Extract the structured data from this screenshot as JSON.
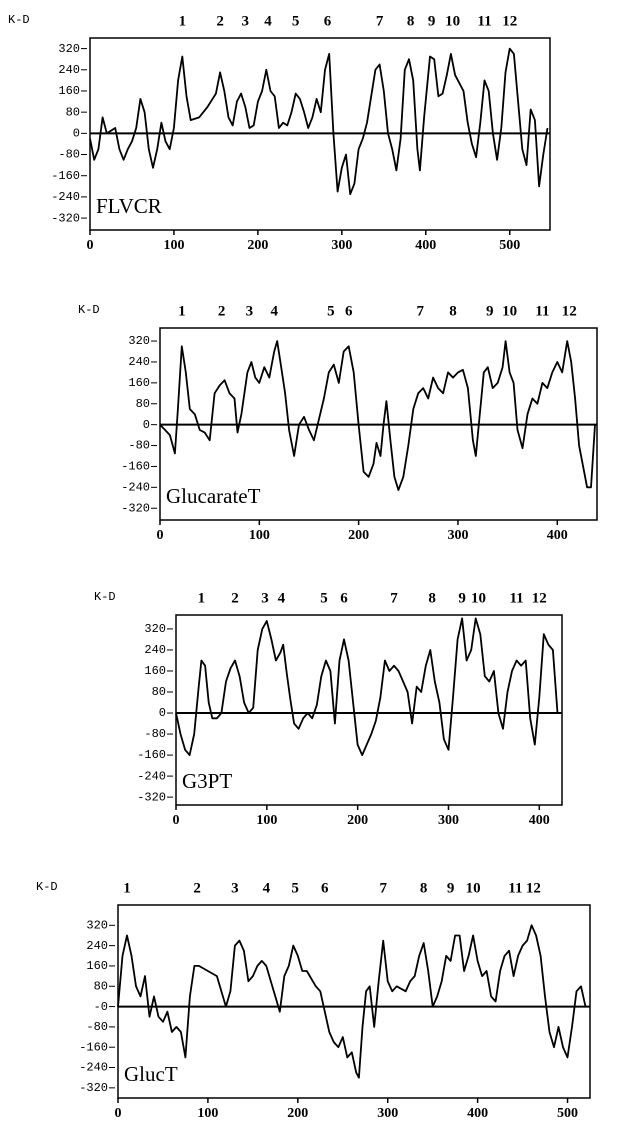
{
  "chart_data": [
    {
      "type": "line",
      "y_label": "K-D",
      "label": "FLVCR",
      "xlim": [
        0,
        548
      ],
      "xticks": [
        0,
        100,
        200,
        300,
        400,
        500
      ],
      "ylim": [
        -365,
        360
      ],
      "yticks": [
        320,
        240,
        160,
        80,
        0,
        -80,
        -160,
        -240,
        -320
      ],
      "annotations": [
        {
          "text": "1",
          "x": 110
        },
        {
          "text": "2",
          "x": 155
        },
        {
          "text": "3",
          "x": 185
        },
        {
          "text": "4",
          "x": 212
        },
        {
          "text": "5",
          "x": 245
        },
        {
          "text": "6",
          "x": 283
        },
        {
          "text": "7",
          "x": 345
        },
        {
          "text": "8",
          "x": 382
        },
        {
          "text": "9",
          "x": 407
        },
        {
          "text": "10",
          "x": 432
        },
        {
          "text": "11",
          "x": 470
        },
        {
          "text": "12",
          "x": 500
        }
      ],
      "x": [
        0,
        5,
        10,
        15,
        20,
        25,
        30,
        35,
        40,
        45,
        50,
        55,
        60,
        65,
        70,
        75,
        80,
        85,
        90,
        95,
        100,
        105,
        110,
        115,
        120,
        130,
        140,
        150,
        155,
        160,
        165,
        170,
        175,
        180,
        185,
        190,
        195,
        200,
        205,
        210,
        215,
        220,
        225,
        230,
        235,
        240,
        245,
        250,
        255,
        260,
        265,
        270,
        275,
        280,
        285,
        290,
        295,
        300,
        305,
        310,
        315,
        320,
        325,
        330,
        340,
        345,
        350,
        355,
        360,
        365,
        370,
        375,
        380,
        385,
        390,
        393,
        398,
        405,
        410,
        415,
        420,
        425,
        430,
        435,
        445,
        450,
        455,
        460,
        465,
        470,
        475,
        480,
        485,
        490,
        495,
        500,
        505,
        510,
        515,
        520,
        525,
        530,
        535,
        540,
        545
      ],
      "series": [
        {
          "color": "#000000",
          "values": [
            -20,
            -100,
            -60,
            60,
            0,
            10,
            20,
            -60,
            -100,
            -60,
            -30,
            20,
            130,
            80,
            -60,
            -130,
            -60,
            40,
            -30,
            -60,
            20,
            200,
            290,
            140,
            50,
            60,
            100,
            150,
            230,
            160,
            60,
            30,
            120,
            150,
            100,
            20,
            30,
            120,
            160,
            240,
            160,
            140,
            20,
            40,
            30,
            80,
            150,
            130,
            80,
            20,
            60,
            130,
            80,
            240,
            300,
            0,
            -220,
            -130,
            -80,
            -230,
            -190,
            -60,
            -20,
            40,
            240,
            260,
            160,
            0,
            -60,
            -140,
            -20,
            240,
            280,
            200,
            -60,
            -140,
            60,
            290,
            280,
            140,
            150,
            220,
            300,
            220,
            160,
            40,
            -40,
            -90,
            40,
            200,
            160,
            0,
            -100,
            20,
            230,
            320,
            300,
            120,
            -60,
            -120,
            90,
            50,
            -200,
            -80,
            20
          ]
        }
      ]
    },
    {
      "type": "line",
      "y_label": "K-D",
      "label": "GlucarateT",
      "xlim": [
        0,
        440
      ],
      "xticks": [
        0,
        100,
        200,
        300,
        400
      ],
      "ylim": [
        -365,
        370
      ],
      "yticks": [
        320,
        240,
        160,
        80,
        0,
        -80,
        -160,
        -240,
        -320
      ],
      "annotations": [
        {
          "text": "1",
          "x": 22
        },
        {
          "text": "2",
          "x": 62
        },
        {
          "text": "3",
          "x": 90
        },
        {
          "text": "4",
          "x": 115
        },
        {
          "text": "5",
          "x": 172
        },
        {
          "text": "6",
          "x": 190
        },
        {
          "text": "7",
          "x": 262
        },
        {
          "text": "8",
          "x": 295
        },
        {
          "text": "9",
          "x": 332
        },
        {
          "text": "10",
          "x": 352
        },
        {
          "text": "11",
          "x": 385
        },
        {
          "text": "12",
          "x": 412
        }
      ],
      "x": [
        0,
        5,
        10,
        15,
        18,
        22,
        26,
        30,
        35,
        40,
        45,
        50,
        55,
        60,
        65,
        70,
        75,
        78,
        82,
        88,
        92,
        96,
        100,
        105,
        110,
        115,
        118,
        122,
        126,
        130,
        135,
        140,
        145,
        150,
        155,
        160,
        165,
        170,
        175,
        180,
        185,
        190,
        195,
        200,
        205,
        210,
        215,
        218,
        222,
        225,
        228,
        232,
        236,
        240,
        245,
        250,
        255,
        260,
        265,
        270,
        275,
        280,
        285,
        290,
        295,
        300,
        305,
        310,
        315,
        318,
        322,
        326,
        330,
        335,
        340,
        345,
        348,
        352,
        356,
        360,
        365,
        370,
        375,
        380,
        385,
        390,
        395,
        400,
        405,
        410,
        414,
        418,
        422,
        426,
        430,
        434,
        438
      ],
      "series": [
        {
          "color": "#000000",
          "values": [
            0,
            -20,
            -40,
            -110,
            60,
            300,
            200,
            60,
            40,
            -20,
            -30,
            -60,
            120,
            150,
            170,
            120,
            100,
            -30,
            40,
            200,
            240,
            180,
            160,
            220,
            180,
            280,
            320,
            220,
            120,
            -20,
            -120,
            0,
            30,
            -20,
            -60,
            20,
            100,
            200,
            230,
            160,
            280,
            300,
            200,
            0,
            -180,
            -200,
            -150,
            -70,
            -120,
            0,
            90,
            -60,
            -200,
            -250,
            -200,
            -80,
            60,
            120,
            140,
            100,
            180,
            140,
            120,
            200,
            180,
            200,
            210,
            140,
            -60,
            -120,
            40,
            200,
            220,
            140,
            160,
            220,
            320,
            200,
            160,
            -20,
            -90,
            40,
            100,
            80,
            160,
            140,
            200,
            240,
            200,
            320,
            240,
            100,
            -80,
            -160,
            -240,
            -240,
            0
          ]
        }
      ]
    },
    {
      "type": "line",
      "y_label": "K-D",
      "label": "G3PT",
      "xlim": [
        0,
        425
      ],
      "xticks": [
        0,
        100,
        200,
        300,
        400
      ],
      "ylim": [
        -350,
        373
      ],
      "yticks": [
        320,
        240,
        160,
        80,
        0,
        -80,
        -160,
        -240,
        -320
      ],
      "annotations": [
        {
          "text": "1",
          "x": 28
        },
        {
          "text": "2",
          "x": 65
        },
        {
          "text": "3",
          "x": 98
        },
        {
          "text": "4",
          "x": 116
        },
        {
          "text": "5",
          "x": 163
        },
        {
          "text": "6",
          "x": 185
        },
        {
          "text": "7",
          "x": 240
        },
        {
          "text": "8",
          "x": 282
        },
        {
          "text": "9",
          "x": 315
        },
        {
          "text": "10",
          "x": 333
        },
        {
          "text": "11",
          "x": 375
        },
        {
          "text": "12",
          "x": 400
        }
      ],
      "x": [
        0,
        5,
        10,
        15,
        20,
        25,
        28,
        32,
        36,
        40,
        45,
        50,
        55,
        60,
        65,
        70,
        75,
        80,
        85,
        90,
        95,
        100,
        105,
        110,
        115,
        118,
        122,
        126,
        130,
        135,
        140,
        145,
        150,
        155,
        160,
        165,
        170,
        175,
        180,
        185,
        190,
        195,
        200,
        205,
        210,
        215,
        220,
        225,
        230,
        235,
        240,
        245,
        250,
        255,
        260,
        265,
        270,
        275,
        280,
        285,
        290,
        295,
        300,
        305,
        310,
        315,
        320,
        325,
        330,
        335,
        340,
        345,
        350,
        355,
        360,
        365,
        370,
        375,
        380,
        385,
        390,
        395,
        400,
        405,
        410,
        415,
        420
      ],
      "series": [
        {
          "color": "#000000",
          "values": [
            0,
            -80,
            -140,
            -160,
            -80,
            100,
            200,
            180,
            40,
            -20,
            -20,
            0,
            120,
            170,
            200,
            140,
            40,
            0,
            20,
            240,
            320,
            350,
            280,
            200,
            230,
            260,
            150,
            50,
            -40,
            -60,
            -20,
            0,
            -20,
            30,
            140,
            200,
            160,
            -40,
            200,
            280,
            200,
            40,
            -120,
            -160,
            -120,
            -80,
            -30,
            60,
            200,
            160,
            180,
            160,
            120,
            80,
            -40,
            100,
            80,
            180,
            240,
            120,
            40,
            -100,
            -140,
            60,
            280,
            360,
            200,
            240,
            360,
            300,
            140,
            120,
            160,
            0,
            -60,
            80,
            160,
            200,
            180,
            200,
            -20,
            -120,
            60,
            300,
            260,
            240,
            0
          ]
        }
      ]
    },
    {
      "type": "line",
      "y_label": "K-D",
      "label": "GlucT",
      "xlim": [
        0,
        525
      ],
      "xticks": [
        0,
        100,
        200,
        300,
        400,
        500
      ],
      "ylim": [
        -360,
        400
      ],
      "yticks": [
        320,
        240,
        160,
        80,
        {
          "value": 0,
          "label": "-0"
        },
        -80,
        -160,
        -240,
        -320
      ],
      "annotations": [
        {
          "text": "1",
          "x": 10
        },
        {
          "text": "2",
          "x": 88
        },
        {
          "text": "3",
          "x": 130
        },
        {
          "text": "4",
          "x": 165
        },
        {
          "text": "5",
          "x": 197
        },
        {
          "text": "6",
          "x": 230
        },
        {
          "text": "7",
          "x": 295
        },
        {
          "text": "8",
          "x": 340
        },
        {
          "text": "9",
          "x": 370
        },
        {
          "text": "10",
          "x": 395
        },
        {
          "text": "11",
          "x": 442
        },
        {
          "text": "12",
          "x": 462
        }
      ],
      "x": [
        0,
        5,
        10,
        15,
        20,
        25,
        30,
        35,
        40,
        45,
        50,
        55,
        60,
        65,
        70,
        75,
        80,
        85,
        90,
        100,
        110,
        120,
        125,
        130,
        135,
        140,
        145,
        150,
        155,
        160,
        165,
        170,
        175,
        180,
        185,
        190,
        195,
        200,
        205,
        210,
        220,
        225,
        230,
        235,
        240,
        245,
        250,
        255,
        260,
        265,
        268,
        272,
        276,
        280,
        285,
        290,
        295,
        300,
        305,
        310,
        320,
        325,
        330,
        335,
        340,
        345,
        350,
        355,
        360,
        365,
        370,
        375,
        380,
        385,
        390,
        395,
        400,
        405,
        410,
        415,
        420,
        425,
        430,
        435,
        440,
        445,
        450,
        455,
        460,
        465,
        470,
        475,
        480,
        485,
        490,
        495,
        500,
        505,
        510,
        515,
        520
      ],
      "series": [
        {
          "color": "#000000",
          "values": [
            0,
            200,
            280,
            200,
            80,
            40,
            120,
            -40,
            40,
            -40,
            -60,
            -20,
            -100,
            -80,
            -100,
            -200,
            40,
            160,
            160,
            140,
            120,
            0,
            60,
            240,
            260,
            220,
            100,
            120,
            160,
            180,
            160,
            100,
            40,
            -20,
            120,
            160,
            240,
            200,
            140,
            140,
            80,
            60,
            -20,
            -100,
            -140,
            -160,
            -120,
            -200,
            -180,
            -260,
            -280,
            -80,
            60,
            80,
            -80,
            100,
            260,
            100,
            60,
            80,
            60,
            100,
            120,
            200,
            250,
            140,
            0,
            40,
            100,
            200,
            180,
            280,
            280,
            140,
            200,
            280,
            180,
            120,
            140,
            40,
            20,
            140,
            200,
            220,
            120,
            200,
            240,
            260,
            320,
            280,
            200,
            40,
            -100,
            -160,
            -80,
            -160,
            -200,
            -80,
            60,
            80,
            0
          ]
        }
      ]
    }
  ]
}
